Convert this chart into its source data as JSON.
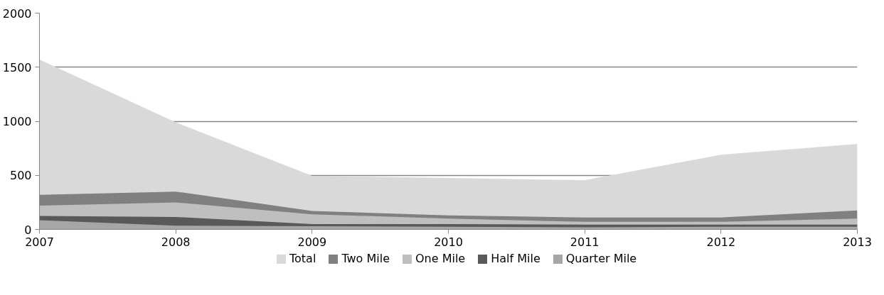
{
  "chart_data": {
    "type": "area",
    "x": [
      2007,
      2008,
      2009,
      2010,
      2011,
      2012,
      2013
    ],
    "series": [
      {
        "name": "Total",
        "color": "#d9d9d9",
        "values": [
          1570,
          990,
          495,
          475,
          455,
          690,
          790
        ]
      },
      {
        "name": "Two Mile",
        "color": "#808080",
        "values": [
          320,
          350,
          170,
          130,
          110,
          110,
          175
        ]
      },
      {
        "name": "One Mile",
        "color": "#bfbfbf",
        "values": [
          220,
          250,
          140,
          100,
          70,
          70,
          100
        ]
      },
      {
        "name": "Half Mile",
        "color": "#595959",
        "values": [
          125,
          115,
          50,
          50,
          45,
          45,
          45
        ]
      },
      {
        "name": "Quarter Mile",
        "color": "#a6a6a6",
        "values": [
          85,
          35,
          30,
          25,
          20,
          25,
          25
        ]
      }
    ],
    "xlim": [
      2007,
      2013
    ],
    "xticks": [
      2007,
      2008,
      2009,
      2010,
      2011,
      2012,
      2013
    ],
    "ylim": [
      0,
      2000
    ],
    "yticks": [
      0,
      500,
      1000,
      1500,
      2000
    ],
    "grid": "y",
    "legend": "bottom"
  }
}
